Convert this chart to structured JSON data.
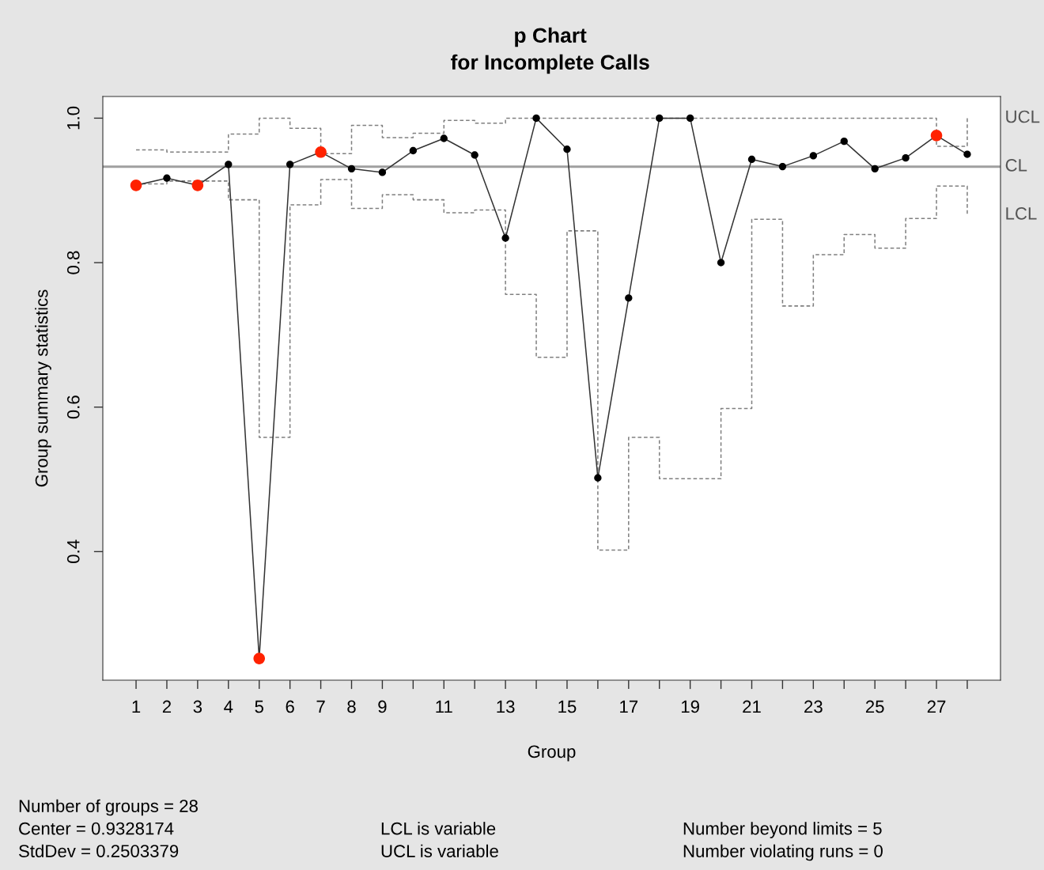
{
  "chart_data": {
    "type": "line",
    "title": "p Chart",
    "subtitle": "for Incomplete Calls",
    "xlabel": "Group",
    "ylabel": "Group summary statistics",
    "x": [
      1,
      2,
      3,
      4,
      5,
      6,
      7,
      8,
      9,
      10,
      11,
      12,
      13,
      14,
      15,
      16,
      17,
      18,
      19,
      20,
      21,
      22,
      23,
      24,
      25,
      26,
      27,
      28
    ],
    "series": [
      {
        "name": "UCL",
        "type": "step",
        "color": "#808080",
        "line_style": "dashed",
        "marker": "none",
        "values": [
          0.956,
          0.953,
          0.953,
          0.978,
          1.0,
          0.986,
          0.951,
          0.99,
          0.973,
          0.979,
          0.997,
          0.993,
          1.0,
          1.0,
          1.0,
          1.0,
          1.0,
          1.0,
          1.0,
          1.0,
          1.0,
          1.0,
          1.0,
          1.0,
          1.0,
          1.0,
          0.961,
          1.0
        ]
      },
      {
        "name": "LCL",
        "type": "step",
        "color": "#808080",
        "line_style": "dashed",
        "marker": "none",
        "values": [
          0.909,
          0.913,
          0.913,
          0.887,
          0.558,
          0.88,
          0.915,
          0.875,
          0.894,
          0.887,
          0.869,
          0.873,
          0.756,
          0.669,
          0.844,
          0.402,
          0.558,
          0.501,
          0.501,
          0.598,
          0.86,
          0.74,
          0.811,
          0.839,
          0.82,
          0.861,
          0.906,
          0.866
        ]
      },
      {
        "color": "#333333",
        "line_style": "solid",
        "marker": "circle",
        "values": [
          0.907,
          0.917,
          0.907,
          0.936,
          0.252,
          0.936,
          0.953,
          0.93,
          0.925,
          0.955,
          0.972,
          0.949,
          0.834,
          1.0,
          0.957,
          0.502,
          0.751,
          1.0,
          1.0,
          0.8,
          0.943,
          0.933,
          0.948,
          0.968,
          0.93,
          0.945,
          0.976,
          0.95
        ],
        "colors": [
          "#ff2200",
          "#000000",
          "#ff2200",
          "#000000",
          "#ff2200",
          "#000000",
          "#ff2200",
          "#000000",
          "#000000",
          "#000000",
          "#000000",
          "#000000",
          "#000000",
          "#000000",
          "#000000",
          "#000000",
          "#000000",
          "#000000",
          "#000000",
          "#000000",
          "#000000",
          "#000000",
          "#000000",
          "#000000",
          "#000000",
          "#000000",
          "#ff2200",
          "#000000"
        ]
      }
    ],
    "ref_lines": [
      {
        "axis": "y",
        "value": 0.9328174,
        "label": "CL",
        "color": "#a0a0a0",
        "line_style": "solid"
      }
    ],
    "xlim": [
      -0.08,
      29.08
    ],
    "ylim": [
      0.222,
      1.03
    ],
    "xticks": [
      1,
      2,
      3,
      4,
      5,
      6,
      7,
      8,
      9,
      {
        "value": 10,
        "label": null
      },
      11,
      {
        "value": 12,
        "label": null
      },
      13,
      {
        "value": 14,
        "label": null
      },
      15,
      {
        "value": 16,
        "label": null
      },
      17,
      {
        "value": 18,
        "label": null
      },
      19,
      {
        "value": 20,
        "label": null
      },
      21,
      {
        "value": 22,
        "label": null
      },
      23,
      {
        "value": 24,
        "label": null
      },
      25,
      {
        "value": 26,
        "label": null
      },
      27,
      {
        "value": 28,
        "label": null
      }
    ],
    "yticks": [
      {
        "value": 0.4,
        "label": "0.4"
      },
      {
        "value": 0.6,
        "label": "0.6"
      },
      {
        "value": 0.8,
        "label": "0.8"
      },
      {
        "value": 1.0,
        "label": "1.0"
      }
    ],
    "grid": false,
    "legend": false,
    "annotations": [
      "Number of groups = 28",
      "Center = 0.9328174",
      "StdDev = 0.2503379",
      "LCL is variable",
      "UCL is variable",
      "Number beyond limits = 5",
      "Number violating runs = 0"
    ]
  }
}
